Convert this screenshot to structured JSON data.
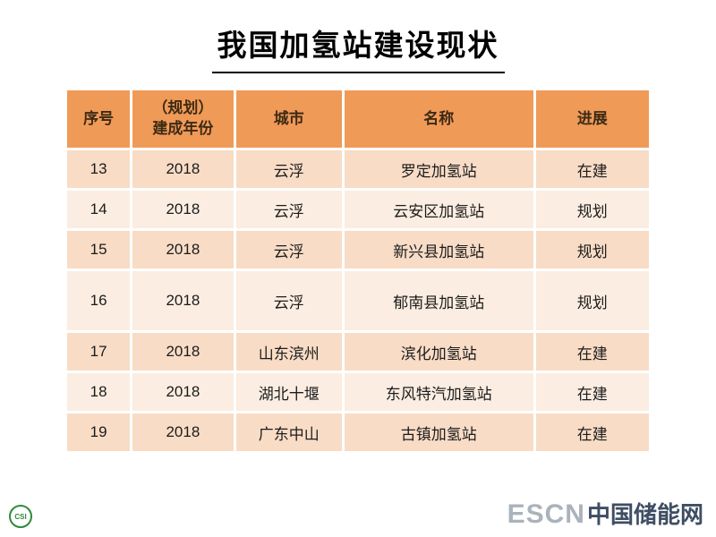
{
  "title": "我国加氢站建设现状",
  "table": {
    "headers": [
      "序号",
      "（规划）\n建成年份",
      "城市",
      "名称",
      "进展"
    ],
    "rows": [
      [
        "13",
        "2018",
        "云浮",
        "罗定加氢站",
        "在建"
      ],
      [
        "14",
        "2018",
        "云浮",
        "云安区加氢站",
        "规划"
      ],
      [
        "15",
        "2018",
        "云浮",
        "新兴县加氢站",
        "规划"
      ],
      [
        "16",
        "2018",
        "云浮",
        "郁南县加氢站",
        "规划"
      ],
      [
        "17",
        "2018",
        "山东滨州",
        "滨化加氢站",
        "在建"
      ],
      [
        "18",
        "2018",
        "湖北十堰",
        "东风特汽加氢站",
        "在建"
      ],
      [
        "19",
        "2018",
        "广东中山",
        "古镇加氢站",
        "在建"
      ]
    ]
  },
  "footer": {
    "badge_text": "CSI",
    "logo_text": "ESCN",
    "brand_text": "中国储能网"
  },
  "colors": {
    "header_bg": "#F09A58",
    "row_dark": "#F8DCC6",
    "row_light": "#FBEDE1",
    "escn_gray": "#AAB3BB",
    "brand_dark": "#3E4E63"
  }
}
